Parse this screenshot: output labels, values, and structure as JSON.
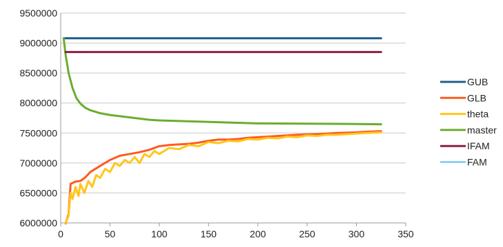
{
  "chart_data": {
    "type": "line",
    "title": "",
    "xlabel": "",
    "ylabel": "",
    "xlim": [
      0,
      350
    ],
    "ylim": [
      6000000,
      9500000
    ],
    "x_ticks": [
      0,
      50,
      100,
      150,
      200,
      250,
      300,
      350
    ],
    "y_ticks": [
      6000000,
      6500000,
      7000000,
      7500000,
      8000000,
      8500000,
      9000000,
      9500000
    ],
    "grid": "horizontal",
    "legend_position": "right",
    "series": [
      {
        "name": "GUB",
        "color": "#1f5f8b",
        "points": [
          [
            3,
            9080000
          ],
          [
            325,
            9080000
          ]
        ]
      },
      {
        "name": "GLB",
        "color": "#ff5a1f",
        "points": [
          [
            5,
            5990000
          ],
          [
            8,
            6150000
          ],
          [
            10,
            6650000
          ],
          [
            15,
            6690000
          ],
          [
            20,
            6700000
          ],
          [
            25,
            6760000
          ],
          [
            30,
            6850000
          ],
          [
            40,
            6950000
          ],
          [
            50,
            7050000
          ],
          [
            60,
            7120000
          ],
          [
            70,
            7150000
          ],
          [
            80,
            7180000
          ],
          [
            90,
            7220000
          ],
          [
            100,
            7280000
          ],
          [
            110,
            7300000
          ],
          [
            120,
            7310000
          ],
          [
            130,
            7320000
          ],
          [
            140,
            7340000
          ],
          [
            150,
            7370000
          ],
          [
            160,
            7390000
          ],
          [
            170,
            7390000
          ],
          [
            180,
            7400000
          ],
          [
            190,
            7420000
          ],
          [
            200,
            7430000
          ],
          [
            220,
            7450000
          ],
          [
            240,
            7470000
          ],
          [
            260,
            7480000
          ],
          [
            280,
            7500000
          ],
          [
            300,
            7510000
          ],
          [
            310,
            7520000
          ],
          [
            325,
            7530000
          ]
        ]
      },
      {
        "name": "theta",
        "color": "#ffc61a",
        "points": [
          [
            5,
            6000000
          ],
          [
            8,
            6120000
          ],
          [
            10,
            6500000
          ],
          [
            12,
            6400000
          ],
          [
            15,
            6600000
          ],
          [
            18,
            6450000
          ],
          [
            20,
            6650000
          ],
          [
            24,
            6500000
          ],
          [
            28,
            6700000
          ],
          [
            32,
            6600000
          ],
          [
            36,
            6800000
          ],
          [
            40,
            6750000
          ],
          [
            45,
            6900000
          ],
          [
            50,
            6850000
          ],
          [
            55,
            7000000
          ],
          [
            60,
            6950000
          ],
          [
            65,
            7050000
          ],
          [
            70,
            7000000
          ],
          [
            75,
            7100000
          ],
          [
            80,
            7000000
          ],
          [
            85,
            7150000
          ],
          [
            90,
            7100000
          ],
          [
            95,
            7200000
          ],
          [
            100,
            7150000
          ],
          [
            110,
            7250000
          ],
          [
            120,
            7230000
          ],
          [
            130,
            7300000
          ],
          [
            140,
            7280000
          ],
          [
            150,
            7350000
          ],
          [
            160,
            7330000
          ],
          [
            170,
            7370000
          ],
          [
            180,
            7360000
          ],
          [
            190,
            7400000
          ],
          [
            200,
            7390000
          ],
          [
            210,
            7420000
          ],
          [
            220,
            7410000
          ],
          [
            230,
            7440000
          ],
          [
            240,
            7430000
          ],
          [
            250,
            7460000
          ],
          [
            260,
            7450000
          ],
          [
            270,
            7470000
          ],
          [
            280,
            7470000
          ],
          [
            290,
            7480000
          ],
          [
            300,
            7490000
          ],
          [
            310,
            7500000
          ],
          [
            325,
            7510000
          ]
        ]
      },
      {
        "name": "master",
        "color": "#6aad2c",
        "points": [
          [
            3,
            9080000
          ],
          [
            5,
            8800000
          ],
          [
            8,
            8500000
          ],
          [
            12,
            8250000
          ],
          [
            16,
            8080000
          ],
          [
            20,
            7990000
          ],
          [
            25,
            7920000
          ],
          [
            30,
            7880000
          ],
          [
            40,
            7830000
          ],
          [
            50,
            7800000
          ],
          [
            60,
            7780000
          ],
          [
            70,
            7760000
          ],
          [
            80,
            7740000
          ],
          [
            90,
            7720000
          ],
          [
            100,
            7710000
          ],
          [
            120,
            7700000
          ],
          [
            140,
            7690000
          ],
          [
            160,
            7680000
          ],
          [
            180,
            7670000
          ],
          [
            200,
            7660000
          ],
          [
            250,
            7655000
          ],
          [
            300,
            7650000
          ],
          [
            325,
            7645000
          ]
        ]
      },
      {
        "name": "IFAM",
        "color": "#8b1f42",
        "points": [
          [
            5,
            8850000
          ],
          [
            325,
            8850000
          ]
        ]
      },
      {
        "name": "FAM",
        "color": "#8ed1f5",
        "points": []
      }
    ]
  }
}
